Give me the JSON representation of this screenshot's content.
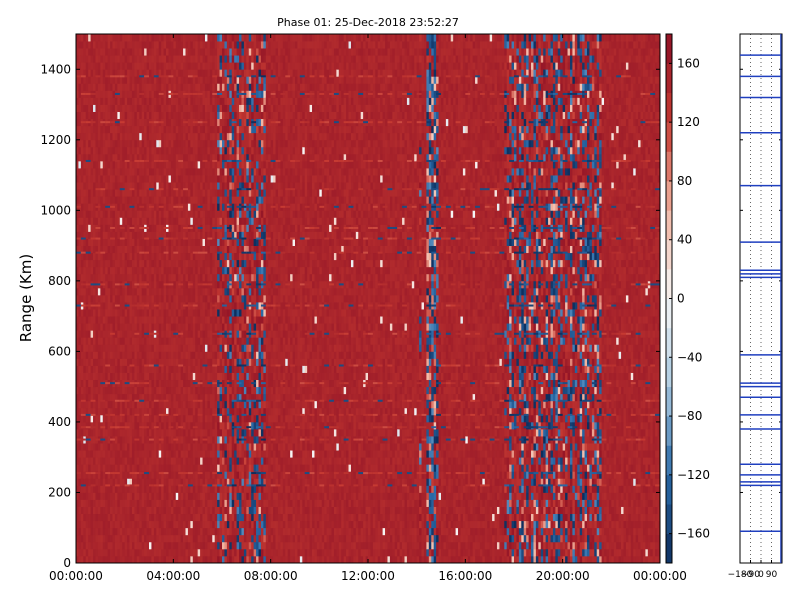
{
  "chart_data": [
    {
      "type": "heatmap",
      "title": "Phase 01: 25-Dec-2018 23:52:27",
      "xlabel": "",
      "ylabel": "Range (Km)",
      "x_ticks": [
        "00:00:00",
        "04:00:00",
        "08:00:00",
        "12:00:00",
        "16:00:00",
        "20:00:00",
        "00:00:00"
      ],
      "x_hours": [
        0,
        4,
        8,
        12,
        16,
        20,
        24
      ],
      "xlim_hours": [
        0,
        24
      ],
      "data_extent_hours": [
        0,
        24
      ],
      "ylim": [
        0,
        1500
      ],
      "y_ticks": [
        0,
        200,
        400,
        600,
        800,
        1000,
        1200,
        1400
      ],
      "background_value": 150,
      "disturbed_bands": [
        {
          "start_hour": 5.8,
          "end_hour": 7.8,
          "level": 0.45
        },
        {
          "start_hour": 14.1,
          "end_hour": 14.2,
          "level": 0.35
        },
        {
          "start_hour": 14.4,
          "end_hour": 14.9,
          "level": 0.95
        },
        {
          "start_hour": 17.6,
          "end_hour": 21.6,
          "level": 0.6
        }
      ],
      "streak_ranges_km": [
        1380,
        1330,
        1250,
        1140,
        1060,
        1010,
        950,
        920,
        880,
        790,
        730,
        650,
        560,
        510,
        460,
        420,
        385,
        350,
        255,
        220
      ],
      "colorbar": {
        "min": -180,
        "max": 180,
        "ticks": [
          160,
          120,
          80,
          40,
          0,
          -40,
          -80,
          -120,
          -160
        ],
        "colors": [
          "#0d2d5c",
          "#2a6aa8",
          "#a9c9e0",
          "#f7f7f7",
          "#f1b4a0",
          "#c63a32",
          "#8c0f25"
        ]
      },
      "grid": false
    },
    {
      "type": "line",
      "title": "",
      "x_ticks": [
        "−180",
        "−90",
        "0",
        "90"
      ],
      "x_values": [
        -180,
        -90,
        0,
        90
      ],
      "xlim": [
        -180,
        180
      ],
      "ylim": [
        0,
        1500
      ],
      "spike_ranges_km": [
        1440,
        1380,
        1320,
        1220,
        1070,
        910,
        830,
        820,
        810,
        590,
        510,
        500,
        470,
        420,
        380,
        280,
        250,
        230,
        220,
        90
      ],
      "spike_values": [
        -180,
        -180,
        -180,
        -180,
        -180,
        -180,
        -180,
        -180,
        -180,
        -180,
        -180,
        -180,
        -180,
        -180,
        -180,
        -180,
        -180,
        -180,
        -180,
        -180
      ],
      "baseline_value": 170,
      "line_color": "#1f3fbf",
      "grid": "vertical dotted"
    }
  ]
}
